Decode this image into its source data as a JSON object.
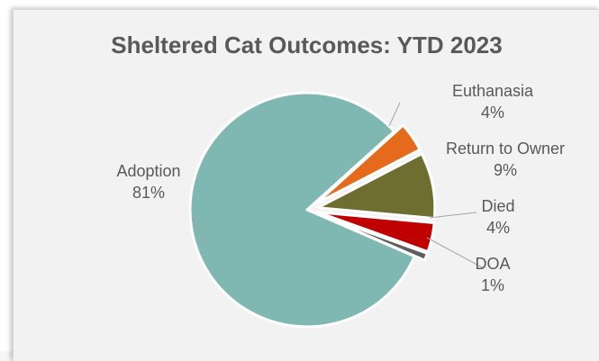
{
  "chart_data": {
    "type": "pie",
    "title": "Sheltered Cat Outcomes: YTD 2023",
    "slices": [
      {
        "name": "Euthanasia",
        "value": 4,
        "label": "4%",
        "color": "#e66a1c"
      },
      {
        "name": "Return to Owner",
        "value": 9,
        "label": "9%",
        "color": "#6e6e30"
      },
      {
        "name": "Died",
        "value": 4,
        "label": "4%",
        "color": "#c00000"
      },
      {
        "name": "DOA",
        "value": 1,
        "label": "1%",
        "color": "#5e5e5e"
      },
      {
        "name": "Adoption",
        "value": 81,
        "label": "81%",
        "color": "#7fb8b2"
      }
    ],
    "legend": "none",
    "data_labels": "outside-with-leader-lines"
  }
}
